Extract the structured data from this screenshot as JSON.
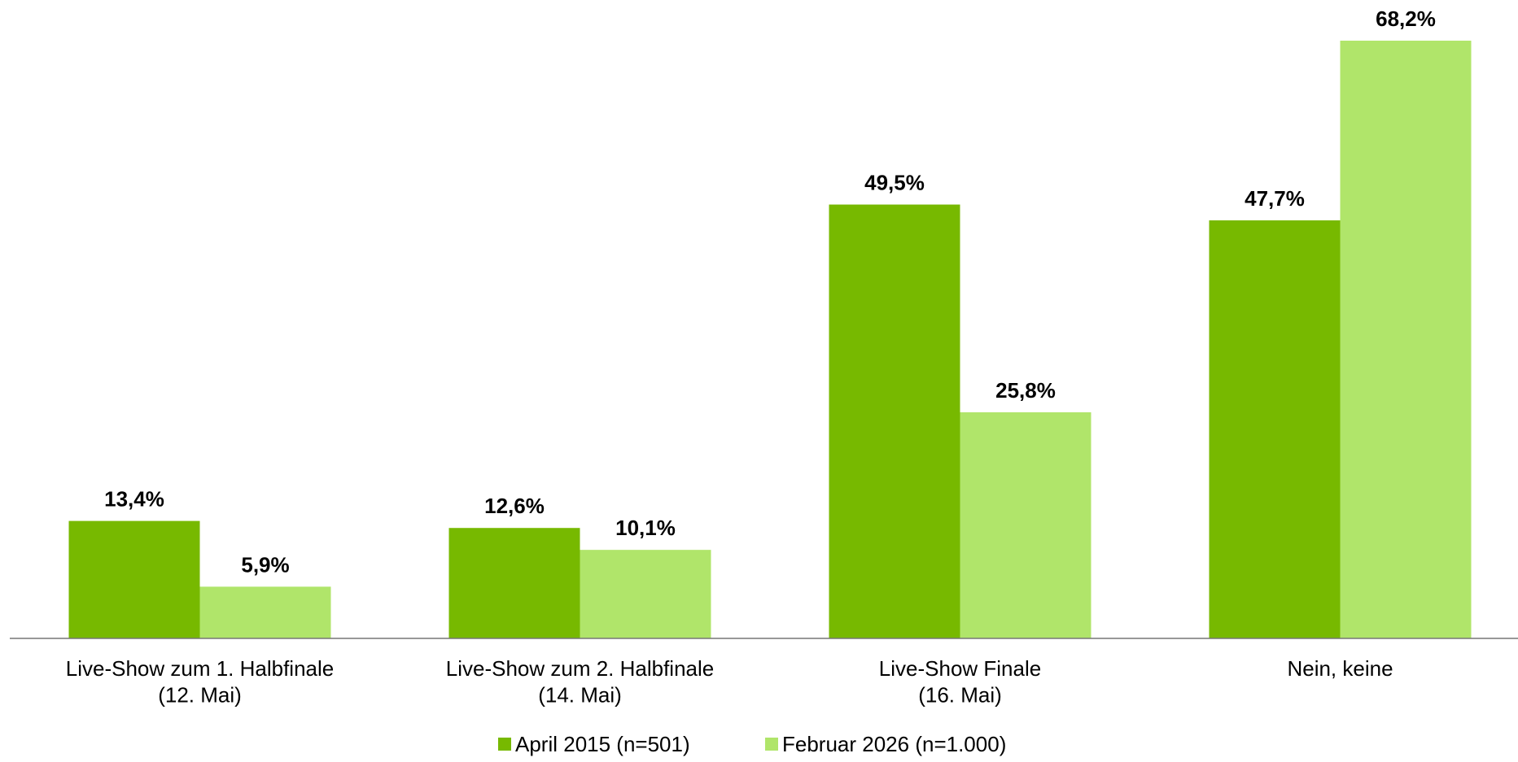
{
  "chart_data": {
    "type": "bar",
    "categories": [
      "Live-Show zum 1. Halbfinale\n(12. Mai)",
      "Live-Show zum 2. Halbfinale\n(14. Mai)",
      "Live-Show Finale\n(16. Mai)",
      "Nein, keine"
    ],
    "series": [
      {
        "name": "April 2015 (n=501)",
        "color": "#77b900",
        "values": [
          13.4,
          12.6,
          49.5,
          47.7
        ],
        "value_labels": [
          "13,4%",
          "12,6%",
          "49,5%",
          "47,7%"
        ]
      },
      {
        "name": "Februar 2026 (n=1.000)",
        "color": "#b0e56a",
        "values": [
          5.9,
          10.1,
          25.8,
          68.2
        ],
        "value_labels": [
          "5,9%",
          "10,1%",
          "25,8%",
          "68,2%"
        ]
      }
    ],
    "legend": "bottom"
  }
}
